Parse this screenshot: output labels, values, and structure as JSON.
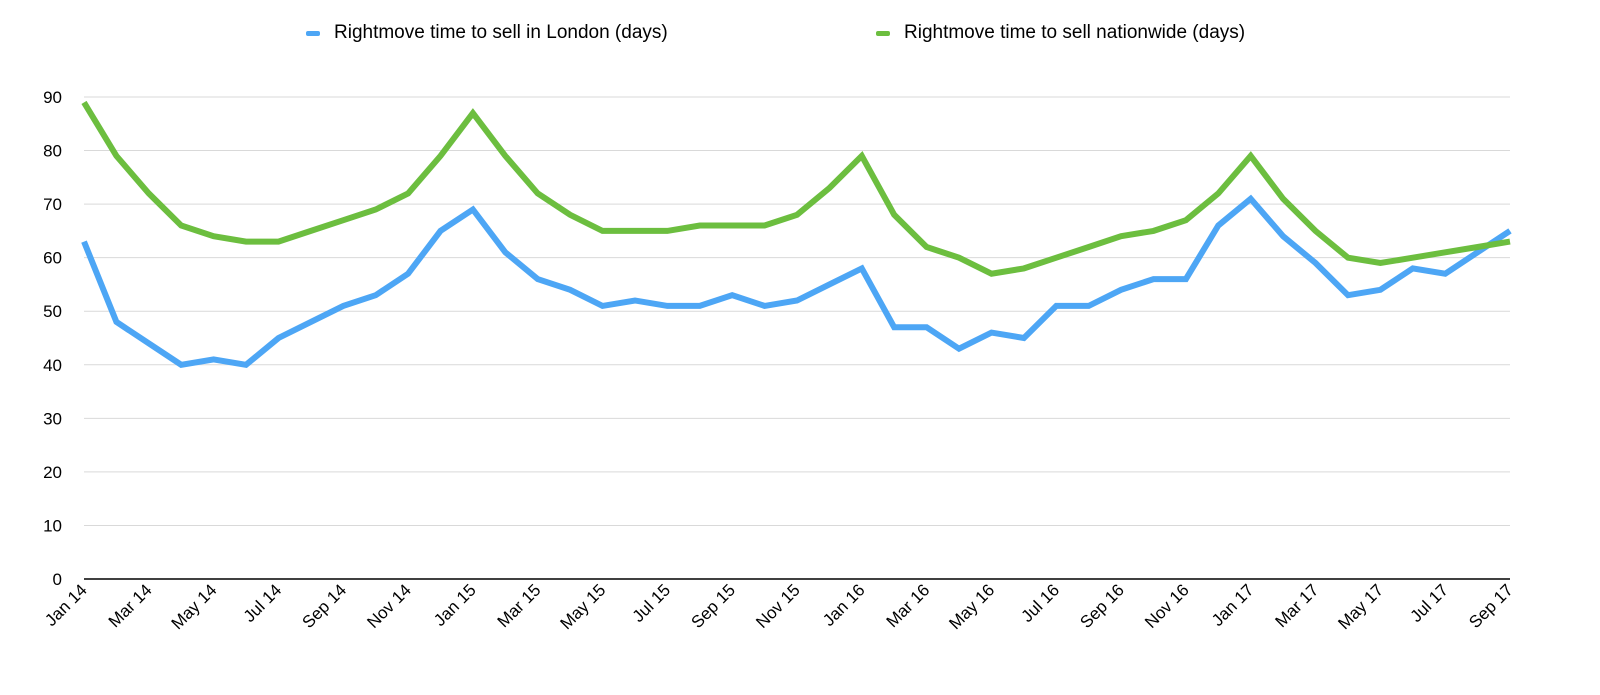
{
  "chart_data": {
    "type": "line",
    "title": "",
    "xlabel": "",
    "ylabel": "",
    "ylim": [
      0,
      90
    ],
    "yticks": [
      0,
      10,
      20,
      30,
      40,
      50,
      60,
      70,
      80,
      90
    ],
    "grid": true,
    "legend_position": "top",
    "x": [
      "Jan 14",
      "Feb 14",
      "Mar 14",
      "Apr 14",
      "May 14",
      "Jun 14",
      "Jul 14",
      "Aug 14",
      "Sep 14",
      "Oct 14",
      "Nov 14",
      "Dec 14",
      "Jan 15",
      "Feb 15",
      "Mar 15",
      "Apr 15",
      "May 15",
      "Jun 15",
      "Jul 15",
      "Aug 15",
      "Sep 15",
      "Oct 15",
      "Nov 15",
      "Dec 15",
      "Jan 16",
      "Feb 16",
      "Mar 16",
      "Apr 16",
      "May 16",
      "Jun 16",
      "Jul 16",
      "Aug 16",
      "Sep 16",
      "Oct 16",
      "Nov 16",
      "Dec 16",
      "Jan 17",
      "Feb 17",
      "Mar 17",
      "Apr 17",
      "May 17",
      "Jun 17",
      "Jul 17",
      "Aug 17",
      "Sep 17"
    ],
    "tick_labels": [
      "Jan 14",
      "Mar 14",
      "May 14",
      "Jul 14",
      "Sep 14",
      "Nov 14",
      "Jan 15",
      "Mar 15",
      "May 15",
      "Jul 15",
      "Sep 15",
      "Nov 15",
      "Jan 16",
      "Mar 16",
      "May 16",
      "Jul 16",
      "Sep 16",
      "Nov 16",
      "Jan 17",
      "Mar 17",
      "May 17",
      "Jul 17",
      "Sep 17"
    ],
    "series": [
      {
        "name": "Rightmove time to sell in London (days)",
        "color": "#4DA6F5",
        "values": [
          63,
          48,
          44,
          40,
          41,
          40,
          45,
          48,
          51,
          53,
          57,
          65,
          69,
          61,
          56,
          54,
          51,
          52,
          51,
          51,
          53,
          51,
          52,
          55,
          58,
          47,
          47,
          43,
          46,
          45,
          51,
          51,
          54,
          56,
          56,
          66,
          71,
          64,
          59,
          53,
          54,
          58,
          57,
          61,
          65
        ]
      },
      {
        "name": "Rightmove time to sell nationwide (days)",
        "color": "#6CBE3F",
        "values": [
          89,
          79,
          72,
          66,
          64,
          63,
          63,
          65,
          67,
          69,
          72,
          79,
          87,
          79,
          72,
          68,
          65,
          65,
          65,
          66,
          66,
          66,
          68,
          73,
          79,
          68,
          62,
          60,
          57,
          58,
          60,
          62,
          64,
          65,
          67,
          72,
          79,
          71,
          65,
          60,
          59,
          60,
          61,
          62,
          63
        ]
      }
    ]
  }
}
